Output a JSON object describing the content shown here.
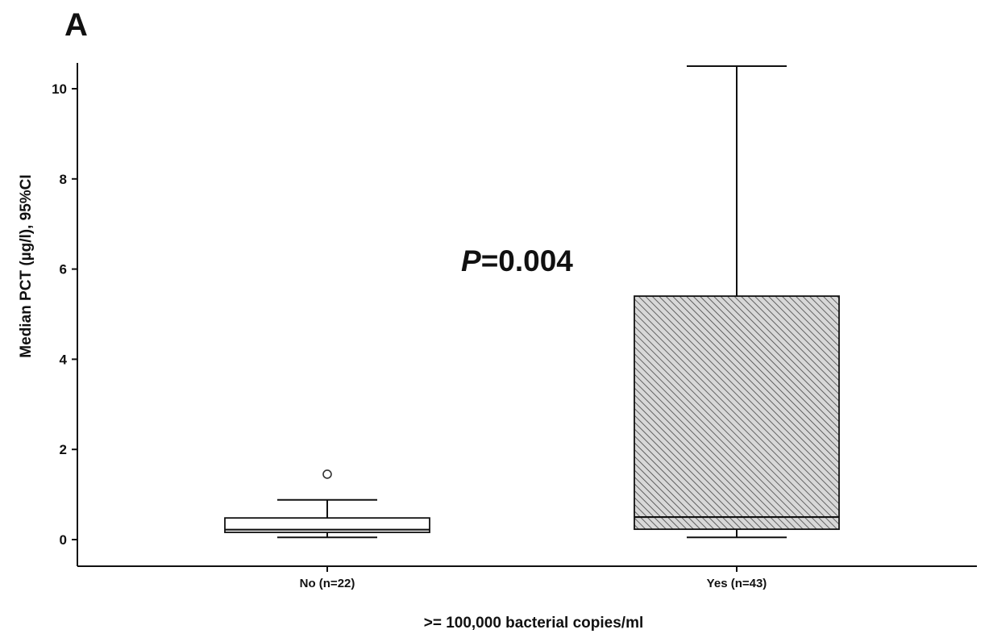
{
  "chart_data": {
    "type": "box",
    "panel_label": "A",
    "xlabel": ">= 100,000 bacterial copies/ml",
    "ylabel": "Median PCT (µg/l), 95%CI",
    "ylim": [
      -0.5,
      10.5
    ],
    "yticks": [
      0,
      2,
      4,
      6,
      8,
      10
    ],
    "grid": false,
    "annotation": {
      "p_italic": "P",
      "p_rest": "=0.004"
    },
    "categories": [
      "No (n=22)",
      "Yes (n=43)"
    ],
    "boxes": [
      {
        "category": "No (n=22)",
        "whisker_low": 0.05,
        "q1": 0.16,
        "median": 0.22,
        "q3": 0.48,
        "whisker_high": 0.88,
        "outliers": [
          1.45
        ],
        "fill": "#ffffff",
        "hatched": false
      },
      {
        "category": "Yes (n=43)",
        "whisker_low": 0.05,
        "q1": 0.23,
        "median": 0.5,
        "q3": 5.4,
        "whisker_high": 10.5,
        "outliers": [],
        "fill": "#d0d0d0",
        "hatched": true
      }
    ]
  }
}
